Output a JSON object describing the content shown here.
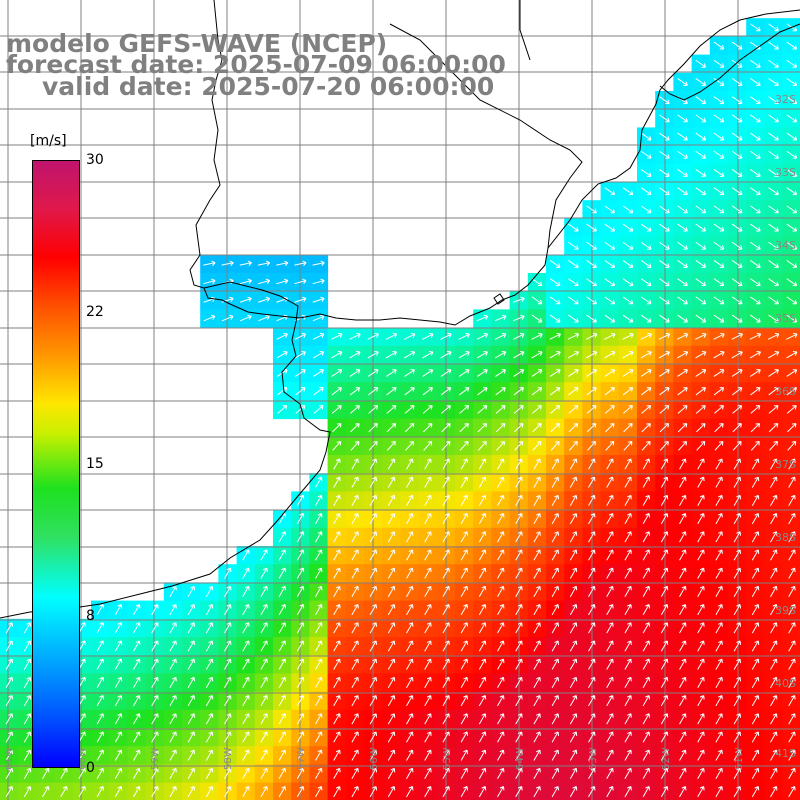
{
  "title": {
    "line1": "modelo GEFS-WAVE (NCEP)",
    "line2": "forecast date: 2025-07-09 06:00:00",
    "line3": "valid date: 2025-07-20 06:00:00"
  },
  "colorbar": {
    "unit": "[m/s]",
    "ticks": [
      "30",
      "22",
      "15",
      "8",
      "0"
    ],
    "colors": [
      "#0000ff",
      "#00aaff",
      "#00ffff",
      "#1ee11e",
      "#ffe600",
      "#ff5000",
      "#ff0000",
      "#c0146e"
    ]
  },
  "lat_labels": [
    "32S",
    "33S",
    "34S",
    "35S",
    "36S",
    "37S",
    "38S",
    "39S",
    "40S",
    "41S"
  ],
  "lon_labels": [
    "61W",
    "60W",
    "59W",
    "58W",
    "57W",
    "56W",
    "55W",
    "54W",
    "53W",
    "52W",
    "51W"
  ],
  "colors": {
    "land": "#ffffff",
    "grid": "#808080",
    "coast": "#000000",
    "arrows": "#ffffff"
  }
}
